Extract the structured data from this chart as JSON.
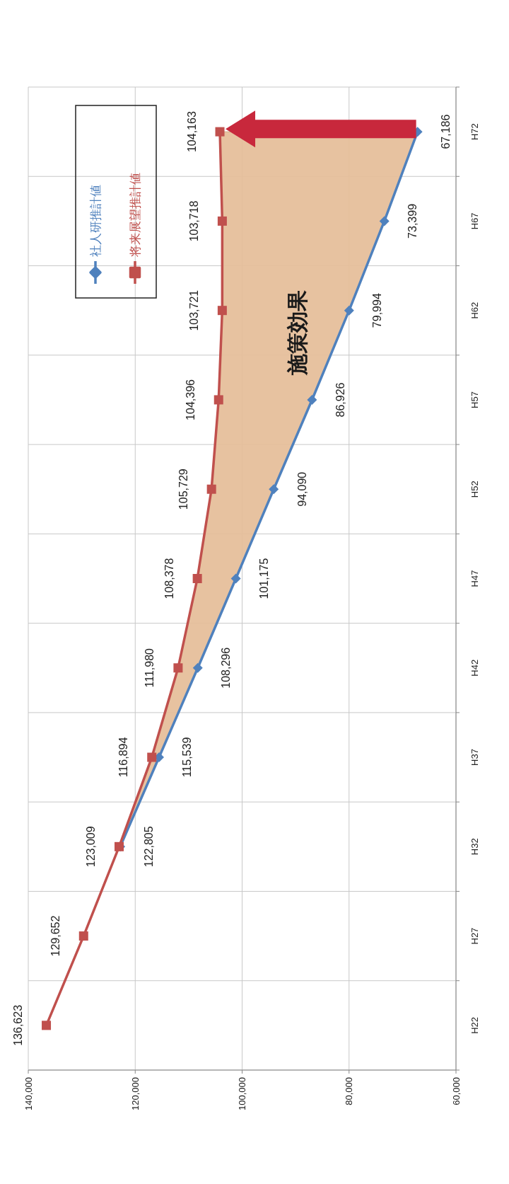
{
  "chart_data": {
    "type": "line",
    "orientation": "horizontal",
    "categories": [
      "H72",
      "H67",
      "H62",
      "H57",
      "H52",
      "H47",
      "H42",
      "H37",
      "H32",
      "H27",
      "H22"
    ],
    "series": [
      {
        "name": "社人研推計値",
        "color": "#4f81bd",
        "marker": "diamond",
        "values": [
          67186,
          73399,
          79994,
          86926,
          94090,
          101175,
          108296,
          115539,
          122805,
          null,
          null
        ],
        "value_labels": [
          "67,186",
          "73,399",
          "79,994",
          "86,926",
          "94,090",
          "101,175",
          "108,296",
          "115,539",
          "122,805",
          null,
          null
        ]
      },
      {
        "name": "将来展望推計値",
        "color": "#c0504d",
        "marker": "square",
        "values": [
          104163,
          103718,
          103721,
          104396,
          105729,
          108378,
          111980,
          116894,
          123009,
          129652,
          136623
        ],
        "value_labels": [
          "104,163",
          "103,718",
          "103,721",
          "104,396",
          "105,729",
          "108,378",
          "111,980",
          "116,894",
          "123,009",
          "129,652",
          "136,623"
        ],
        "lower": [
          67186,
          73399,
          79994,
          86926,
          94090,
          101175,
          108296,
          115539,
          122805,
          null,
          null
        ],
        "upper": [
          104163,
          103718,
          103721,
          104396,
          105729,
          108378,
          111980,
          116894,
          123009,
          null,
          null
        ]
      }
    ],
    "xlim": [
      140000,
      60000
    ],
    "xticks": [
      {
        "value": 140000,
        "label": "140,000"
      },
      {
        "value": 120000,
        "label": "120,000"
      },
      {
        "value": 100000,
        "label": "100,000"
      },
      {
        "value": 80000,
        "label": "80,000"
      },
      {
        "value": 60000,
        "label": "60,000"
      }
    ],
    "grid": true,
    "legend": "top left",
    "line_style": "solid",
    "annotations": [
      "施策効果"
    ]
  }
}
